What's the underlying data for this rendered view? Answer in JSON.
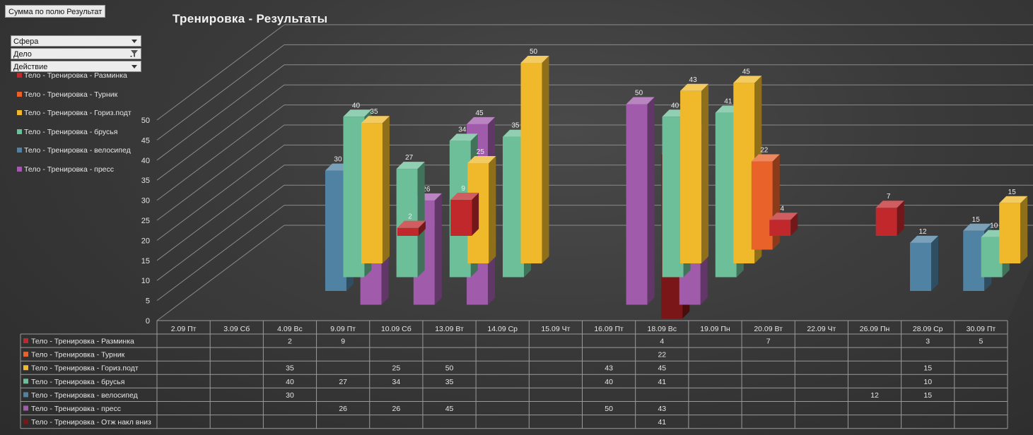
{
  "pivot_button": "Сумма по полю Результат",
  "filters": [
    {
      "label": "Сфера",
      "icon": "dropdown-arrow-icon"
    },
    {
      "label": "Дело",
      "icon": "filter-funnel-icon"
    },
    {
      "label": "Действие",
      "icon": "dropdown-arrow-icon"
    }
  ],
  "chart_data": {
    "type": "bar",
    "title": "Тренировка - Результаты",
    "xlabel": "",
    "ylabel": "",
    "ylim": [
      0,
      50
    ],
    "yticks": [
      0,
      5,
      10,
      15,
      20,
      25,
      30,
      35,
      40,
      45,
      50
    ],
    "grid": true,
    "legend_position": "left",
    "categories": [
      "2.09 Пт",
      "3.09 Сб",
      "4.09 Вс",
      "9.09 Пт",
      "10.09 Сб",
      "13.09 Вт",
      "14.09 Ср",
      "15.09 Чт",
      "16.09 Пт",
      "18.09 Вс",
      "19.09 Пн",
      "20.09 Вт",
      "22.09 Чт",
      "26.09 Пн",
      "28.09 Ср",
      "30.09 Пт"
    ],
    "series": [
      {
        "name": "Тело - Тренировка - Разминка",
        "color": "#c0282c",
        "values": [
          null,
          null,
          2,
          9,
          null,
          null,
          null,
          null,
          null,
          4,
          null,
          7,
          null,
          null,
          3,
          5
        ]
      },
      {
        "name": "Тело - Тренировка - Турник",
        "color": "#e8622a",
        "values": [
          null,
          null,
          null,
          null,
          null,
          null,
          null,
          null,
          null,
          22,
          null,
          null,
          null,
          null,
          null,
          null
        ]
      },
      {
        "name": "Тело - Тренировка - Гориз.подт",
        "color": "#f0b92c",
        "values": [
          null,
          null,
          35,
          null,
          25,
          50,
          null,
          null,
          43,
          45,
          null,
          null,
          null,
          null,
          15,
          null
        ]
      },
      {
        "name": "Тело - Тренировка - брусья",
        "color": "#6cbf98",
        "values": [
          null,
          null,
          40,
          27,
          34,
          35,
          null,
          null,
          40,
          41,
          null,
          null,
          null,
          null,
          10,
          null
        ]
      },
      {
        "name": "Тело - Тренировка - велосипед",
        "color": "#4f82a3",
        "values": [
          null,
          null,
          30,
          null,
          null,
          null,
          null,
          null,
          null,
          null,
          null,
          null,
          null,
          12,
          15,
          null
        ]
      },
      {
        "name": "Тело - Тренировка - пресс",
        "color": "#a05cab",
        "values": [
          null,
          null,
          null,
          26,
          26,
          45,
          null,
          null,
          50,
          43,
          null,
          null,
          null,
          null,
          null,
          null
        ]
      },
      {
        "name": "Тело - Тренировка - Отж накл вниз",
        "color": "#7a1518",
        "values": [
          null,
          null,
          null,
          null,
          null,
          null,
          null,
          null,
          null,
          41,
          null,
          null,
          null,
          null,
          null,
          null
        ]
      }
    ]
  }
}
